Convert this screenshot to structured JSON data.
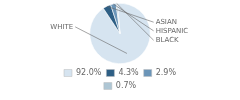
{
  "chart_data": {
    "type": "pie",
    "categories": [
      "WHITE",
      "ASIAN",
      "HISPANIC",
      "BLACK"
    ],
    "values": [
      92.0,
      4.3,
      2.9,
      0.7
    ],
    "value_labels": [
      "92.0%",
      "4.3%",
      "2.9%",
      "0.7%"
    ],
    "colors": [
      "#d6e4f0",
      "#2e5f85",
      "#6b95b8",
      "#aec6d4"
    ],
    "legend": "bottom"
  }
}
